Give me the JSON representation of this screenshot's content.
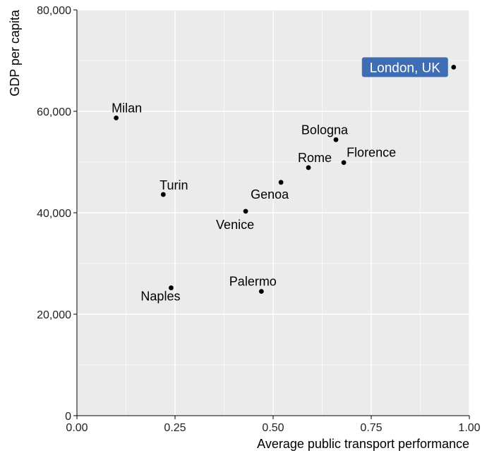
{
  "chart_data": {
    "type": "scatter",
    "xlabel": "Average public transport performance",
    "ylabel": "GDP per capita",
    "xlim": [
      0,
      1
    ],
    "ylim": [
      0,
      80000
    ],
    "x_ticks": [
      "0.00",
      "0.25",
      "0.50",
      "0.75",
      "1.00"
    ],
    "y_ticks": [
      "0",
      "20,000",
      "40,000",
      "60,000",
      "80,000"
    ],
    "grid": true,
    "points": [
      {
        "label": "Milan",
        "x": 0.1,
        "y": 58700
      },
      {
        "label": "Turin",
        "x": 0.22,
        "y": 43600
      },
      {
        "label": "Naples",
        "x": 0.24,
        "y": 25200
      },
      {
        "label": "Venice",
        "x": 0.43,
        "y": 40300
      },
      {
        "label": "Palermo",
        "x": 0.47,
        "y": 24500
      },
      {
        "label": "Genoa",
        "x": 0.52,
        "y": 46000
      },
      {
        "label": "Rome",
        "x": 0.59,
        "y": 48900
      },
      {
        "label": "Bologna",
        "x": 0.66,
        "y": 54400
      },
      {
        "label": "Florence",
        "x": 0.68,
        "y": 49900
      },
      {
        "label": "London, UK",
        "x": 0.96,
        "y": 68700,
        "highlight": true
      }
    ],
    "colors": {
      "panel": "#ebebeb",
      "grid": "#ffffff",
      "point": "#000000",
      "highlight_box": "#3f6db3"
    }
  }
}
